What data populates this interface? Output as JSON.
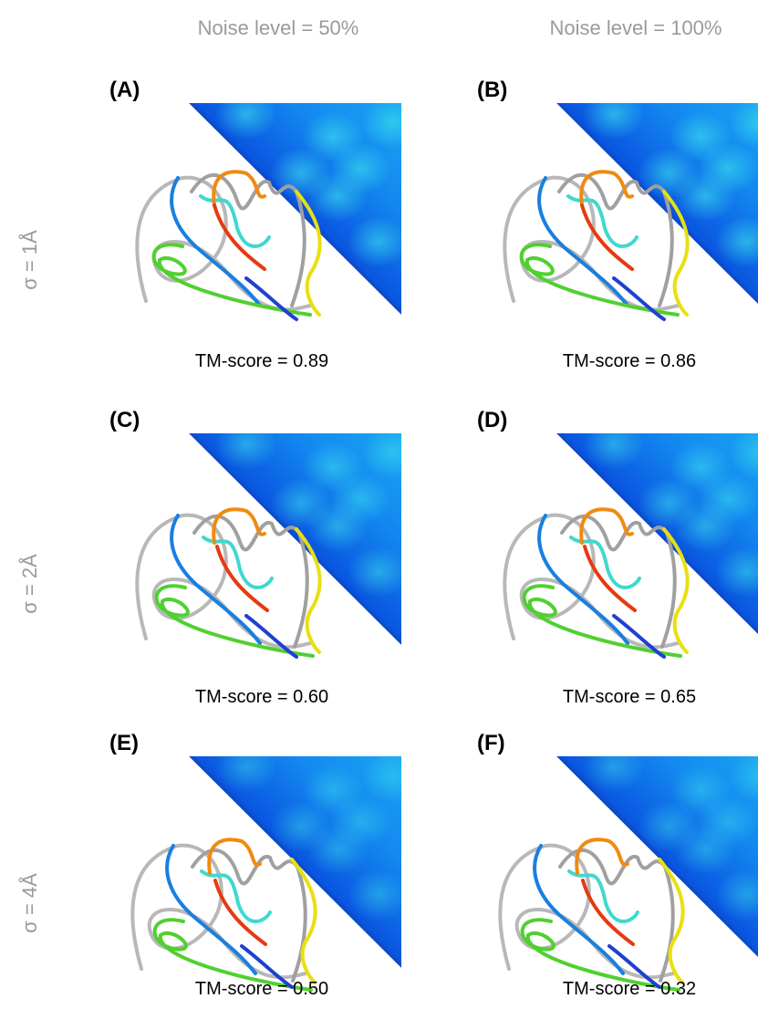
{
  "columns": [
    "Noise level = 50%",
    "Noise level = 100%"
  ],
  "rows": [
    "σ = 1Å",
    "σ = 2Å",
    "σ = 4Å"
  ],
  "panels": [
    {
      "label": "(A)",
      "score": "TM-score = 0.89"
    },
    {
      "label": "(B)",
      "score": "TM-score = 0.86"
    },
    {
      "label": "(C)",
      "score": "TM-score = 0.60"
    },
    {
      "label": "(D)",
      "score": "TM-score = 0.65"
    },
    {
      "label": "(E)",
      "score": "TM-score = 0.50"
    },
    {
      "label": "(F)",
      "score": "TM-score = 0.32"
    }
  ]
}
